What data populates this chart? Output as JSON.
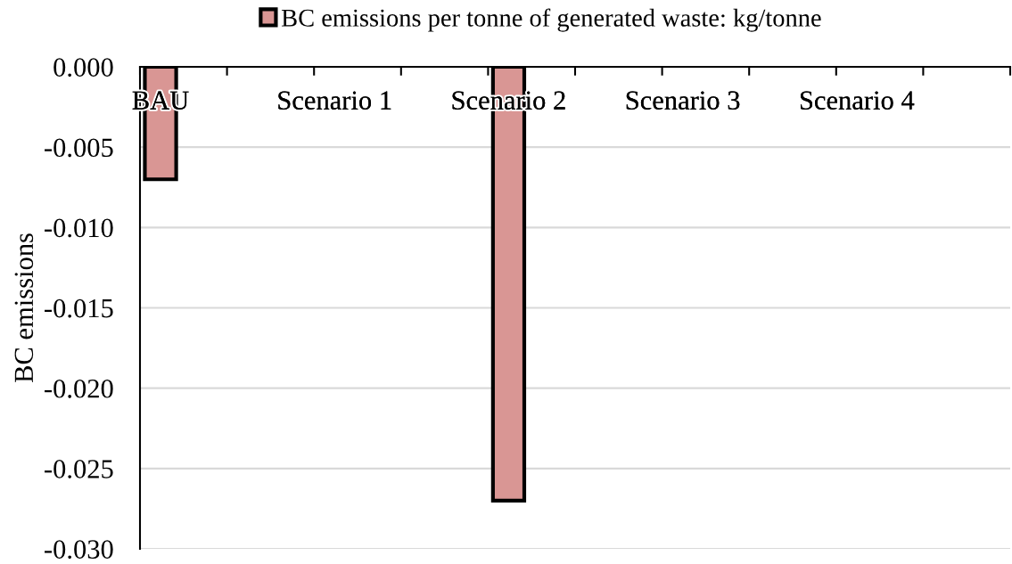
{
  "chart_data": {
    "type": "bar",
    "categories": [
      "BAU",
      "Scenario 1",
      "Scenario 2",
      "Scenario 3",
      "Scenario 4"
    ],
    "series": [
      {
        "name": "BC emissions per tonne of generated waste: kg/tonne",
        "color": "#d99694",
        "values": [
          -0.007,
          null,
          -0.027,
          null,
          null
        ]
      }
    ],
    "ylabel": "BC emissions",
    "ylim": [
      -0.03,
      0.0
    ],
    "yticks": [
      {
        "value": 0.0,
        "label": "0.000"
      },
      {
        "value": -0.005,
        "label": "-0.005"
      },
      {
        "value": -0.01,
        "label": "-0.010"
      },
      {
        "value": -0.015,
        "label": "-0.015"
      },
      {
        "value": -0.02,
        "label": "-0.020"
      },
      {
        "value": -0.025,
        "label": "-0.025"
      },
      {
        "value": -0.03,
        "label": "-0.030"
      }
    ],
    "grid": "y",
    "legend": "top"
  }
}
